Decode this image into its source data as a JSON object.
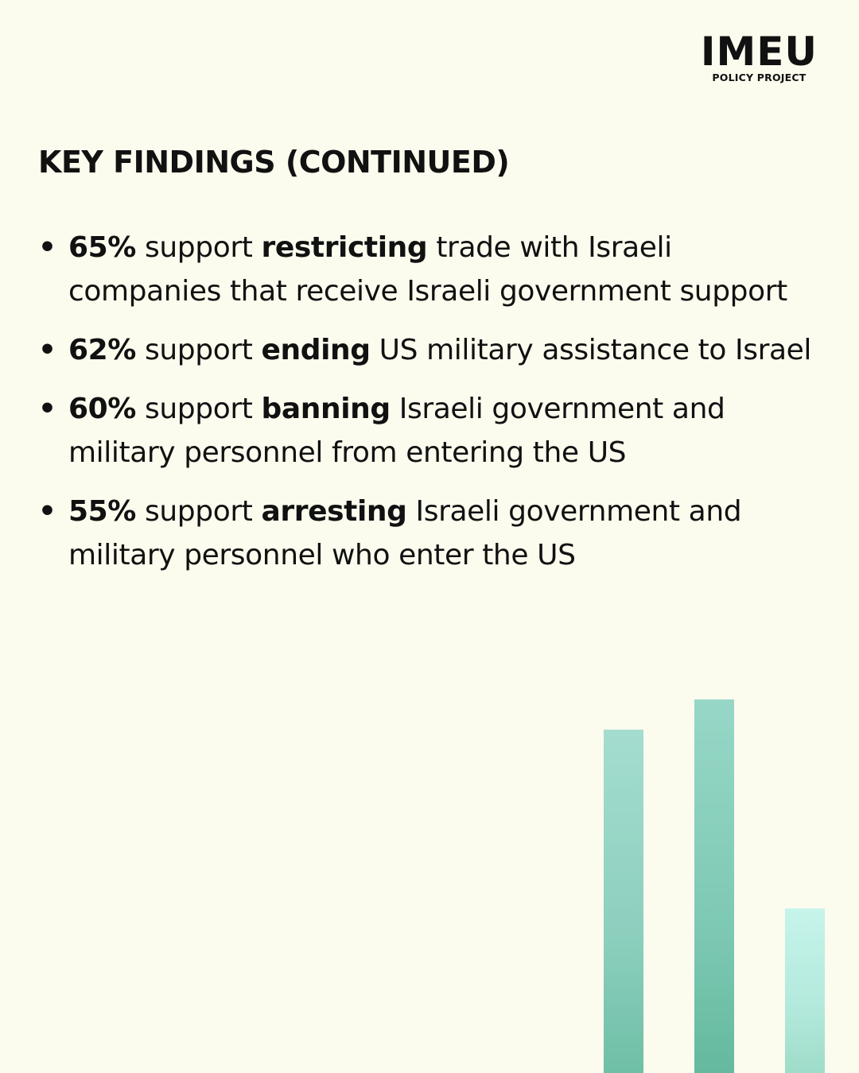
{
  "logo": {
    "main": "IMEU",
    "sub": "POLICY PROJECT"
  },
  "heading": "KEY FINDINGS (CONTINUED)",
  "bullet_symbol": "•",
  "findings": [
    {
      "percent": "65%",
      "support_text": " support ",
      "action": "restricting",
      "rest": " trade with Israeli companies that receive Israeli government support"
    },
    {
      "percent": "62%",
      "support_text": " support ",
      "action": "ending",
      "rest": " US military assistance to Israel"
    },
    {
      "percent": "60%",
      "support_text": " support ",
      "action": "banning",
      "rest": " Israeli government and military personnel from entering the US"
    },
    {
      "percent": "55%",
      "support_text": " support ",
      "action": "arresting",
      "rest": " Israeli government and military personnel who enter the US"
    }
  ],
  "decor": {
    "bar_colors": [
      "#8ccfbe",
      "#7ec9b4",
      "#b3e9dc"
    ],
    "bar_levels": [
      0.92,
      1.0,
      0.44
    ]
  }
}
